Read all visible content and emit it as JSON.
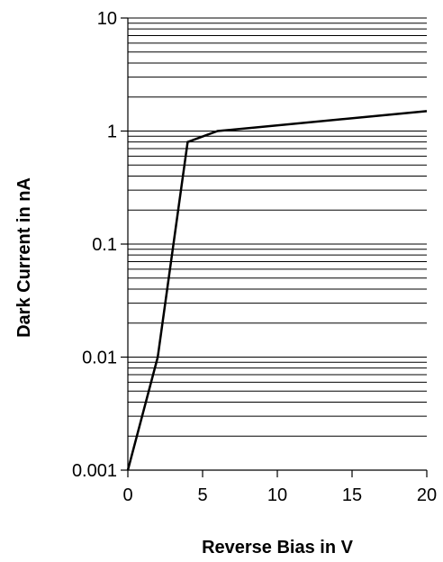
{
  "chart_data": {
    "type": "line",
    "xlabel": "Reverse Bias in V",
    "ylabel": "Dark Current in nA",
    "xlim": [
      0,
      20
    ],
    "ylim": [
      0.001,
      10
    ],
    "yscale": "log",
    "grid": "horizontal minor and major gridlines",
    "legend": "none",
    "x_ticks": [
      0,
      5,
      10,
      15,
      20
    ],
    "x_tick_labels": [
      "0",
      "5",
      "10",
      "15",
      "20"
    ],
    "y_ticks": [
      0.001,
      0.01,
      0.1,
      1,
      10
    ],
    "y_tick_labels": [
      "0.001",
      "0.01",
      "0.1",
      "1",
      "10"
    ],
    "series": [
      {
        "x": [
          0,
          2,
          4,
          6,
          20
        ],
        "y": [
          0.001,
          0.01,
          0.8,
          1.0,
          1.5
        ]
      }
    ],
    "colors": {
      "line": "#000000",
      "grid": "#000000",
      "background": "#ffffff"
    }
  }
}
